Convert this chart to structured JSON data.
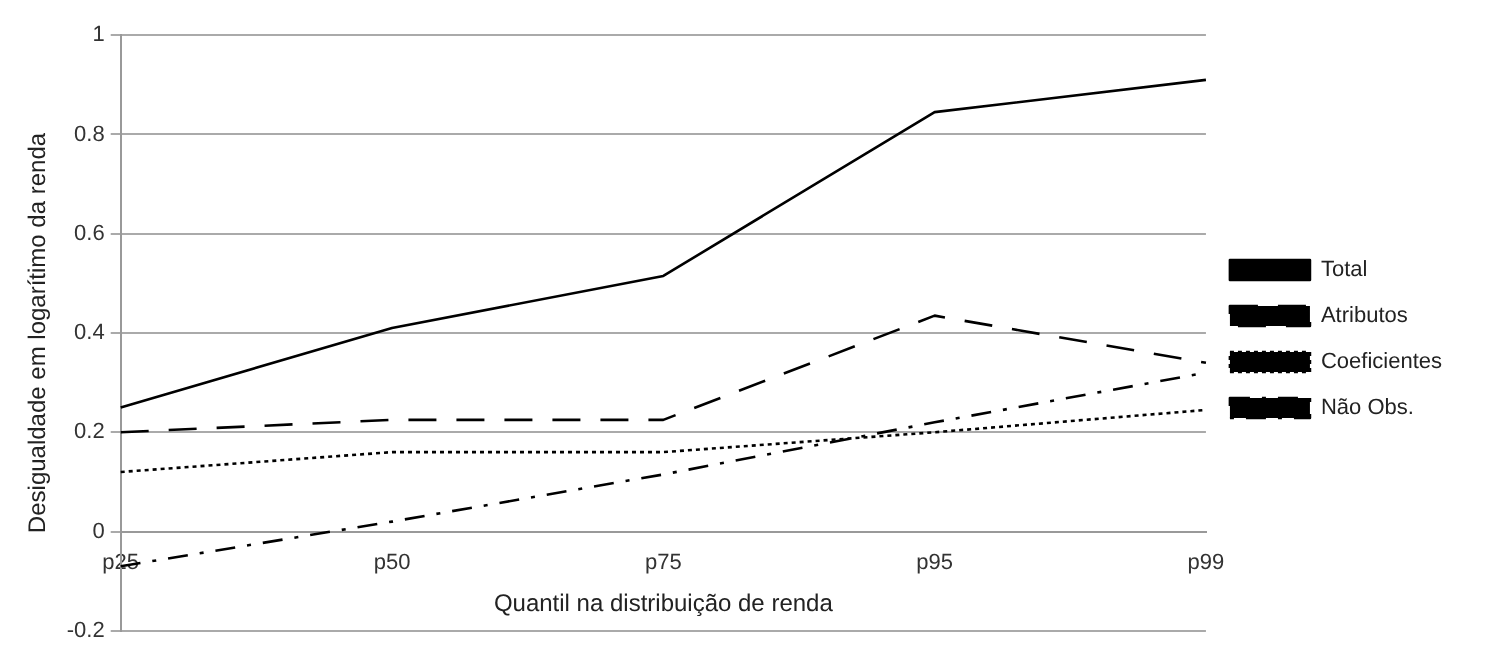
{
  "chart_data": {
    "type": "line",
    "xlabel": "Quantil na distribuição de renda",
    "ylabel": "Desigualdade em logarítimo da renda",
    "categories": [
      "p25",
      "p50",
      "p75",
      "p95",
      "p99"
    ],
    "series": [
      {
        "name": "Total",
        "color": "#000000",
        "line_style": "solid",
        "values": [
          0.25,
          0.41,
          0.515,
          0.845,
          0.91
        ]
      },
      {
        "name": "Atributos",
        "color": "#000000",
        "line_style": "dashed",
        "values": [
          0.2,
          0.225,
          0.225,
          0.435,
          0.34
        ]
      },
      {
        "name": "Coeficientes",
        "color": "#000000",
        "line_style": "dotted",
        "values": [
          0.12,
          0.16,
          0.16,
          0.2,
          0.245
        ]
      },
      {
        "name": "Não Obs.",
        "color": "#000000",
        "line_style": "dashdot",
        "values": [
          -0.07,
          0.02,
          0.115,
          0.22,
          0.32
        ]
      }
    ],
    "ylim": [
      -0.2,
      1
    ],
    "yticks": [
      -0.2,
      0,
      0.2,
      0.4,
      0.6,
      0.8,
      1
    ],
    "grid": "y",
    "legend": "right",
    "marker": "none"
  }
}
